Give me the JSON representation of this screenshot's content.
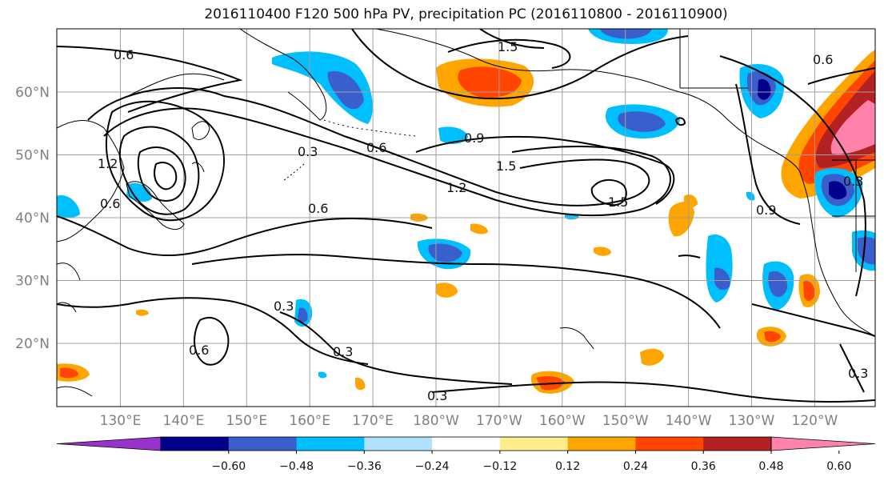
{
  "title": "2016110400 F120 500 hPa PV, precipitation PC (2016110800 - 2016110900)",
  "lon_labels": [
    "130°E",
    "140°E",
    "150°E",
    "160°E",
    "170°E",
    "180°W",
    "170°W",
    "160°W",
    "150°W",
    "140°W",
    "130°W",
    "120°W"
  ],
  "lat_labels": [
    "60°N",
    "50°N",
    "40°N",
    "30°N",
    "20°N"
  ],
  "contour_labels": [
    "0.6",
    "1.5",
    "0.3",
    "0.9",
    "0.6",
    "1.5",
    "1.2",
    "1.5",
    "0.9",
    "0.3",
    "0.6",
    "1.2",
    "0.6",
    "0.3",
    "0.3",
    "0.6",
    "0.3",
    "0.3",
    "0.6"
  ],
  "colorbar": {
    "colors": [
      "#9932cc",
      "#00008b",
      "#3a5fcd",
      "#00bfff",
      "#b0e2ff",
      "#ffffff",
      "#ffec8b",
      "#ffa500",
      "#ff4500",
      "#b22222",
      "#ff82ab"
    ],
    "tick_labels": [
      "−0.60",
      "−0.48",
      "−0.36",
      "−0.24",
      "−0.12",
      "0.12",
      "0.24",
      "0.36",
      "0.48",
      "0.60"
    ]
  }
}
